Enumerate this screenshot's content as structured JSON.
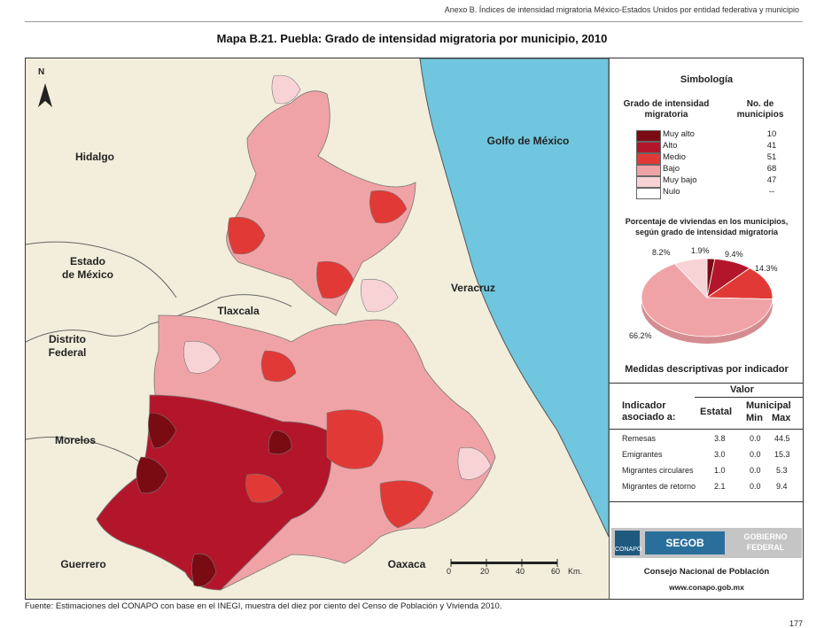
{
  "header": "Anexo B. Índices de intensidad migratoria México-Estados Unidos por entidad federativa y municipio",
  "title": "Mapa B.21. Puebla: Grado de intensidad migratoria por municipio, 2010",
  "north": "N",
  "neighbors": {
    "hidalgo": "Hidalgo",
    "edomex": "Estado\nde México",
    "tlaxcala": "Tlaxcala",
    "df": "Distrito\nFederal",
    "morelos": "Morelos",
    "guerrero": "Guerrero",
    "oaxaca": "Oaxaca",
    "veracruz": "Veracruz",
    "golfo": "Golfo de México"
  },
  "scale": {
    "ticks": [
      "0",
      "20",
      "40",
      "60"
    ],
    "unit": "Km."
  },
  "legend": {
    "title": "Simbología",
    "col1": "Grado de intensidad migratoria",
    "col2": "No. de municipios",
    "items": [
      {
        "label": "Muy alto",
        "count": "10",
        "color": "#7a0b13"
      },
      {
        "label": "Alto",
        "count": "41",
        "color": "#b3162a"
      },
      {
        "label": "Medio",
        "count": "51",
        "color": "#e13a36"
      },
      {
        "label": "Bajo",
        "count": "68",
        "color": "#f0a3a6"
      },
      {
        "label": "Muy bajo",
        "count": "47",
        "color": "#f7d3d6"
      },
      {
        "label": "Nulo",
        "count": "--",
        "color": "#ffffff"
      }
    ]
  },
  "pie": {
    "title": "Porcentaje de viviendas en los municipios, según grado de intensidad migratoria",
    "slices": [
      {
        "label": "1.9%",
        "value": 1.9,
        "color": "#7a0b13"
      },
      {
        "label": "9.4%",
        "value": 9.4,
        "color": "#b3162a"
      },
      {
        "label": "14.3%",
        "value": 14.3,
        "color": "#e13a36"
      },
      {
        "label": "66.2%",
        "value": 66.2,
        "color": "#f0a3a6"
      },
      {
        "label": "8.2%",
        "value": 8.2,
        "color": "#f7d3d6"
      }
    ]
  },
  "stats": {
    "title": "Medidas descriptivas por indicador",
    "valor": "Valor",
    "indicador": "Indicador asociado a:",
    "estatal": "Estatal",
    "municipal": "Municipal",
    "min": "Min",
    "max": "Max",
    "rows": [
      {
        "name": "Remesas",
        "estatal": "3.8",
        "min": "0.0",
        "max": "44.5"
      },
      {
        "name": "Emigrantes",
        "estatal": "3.0",
        "min": "0.0",
        "max": "15.3"
      },
      {
        "name": "Migrantes circulares",
        "estatal": "1.0",
        "min": "0.0",
        "max": "5.3"
      },
      {
        "name": "Migrantes de retorno",
        "estatal": "2.1",
        "min": "0.0",
        "max": "9.4"
      }
    ]
  },
  "logos": {
    "conapo": "CONAPO",
    "segob": "SEGOB",
    "gobierno": "GOBIERNO\nFEDERAL"
  },
  "consejo": "Consejo Nacional de Población",
  "web": "www.conapo.gob.mx",
  "fuente": "Fuente: Estimaciones del CONAPO con base en el INEGI, muestra del diez por ciento del Censo de Población y Vivienda 2010.",
  "page_number": "177",
  "colors": {
    "background": "#f3eedb",
    "sea": "#6fc6de",
    "border": "#555555"
  }
}
